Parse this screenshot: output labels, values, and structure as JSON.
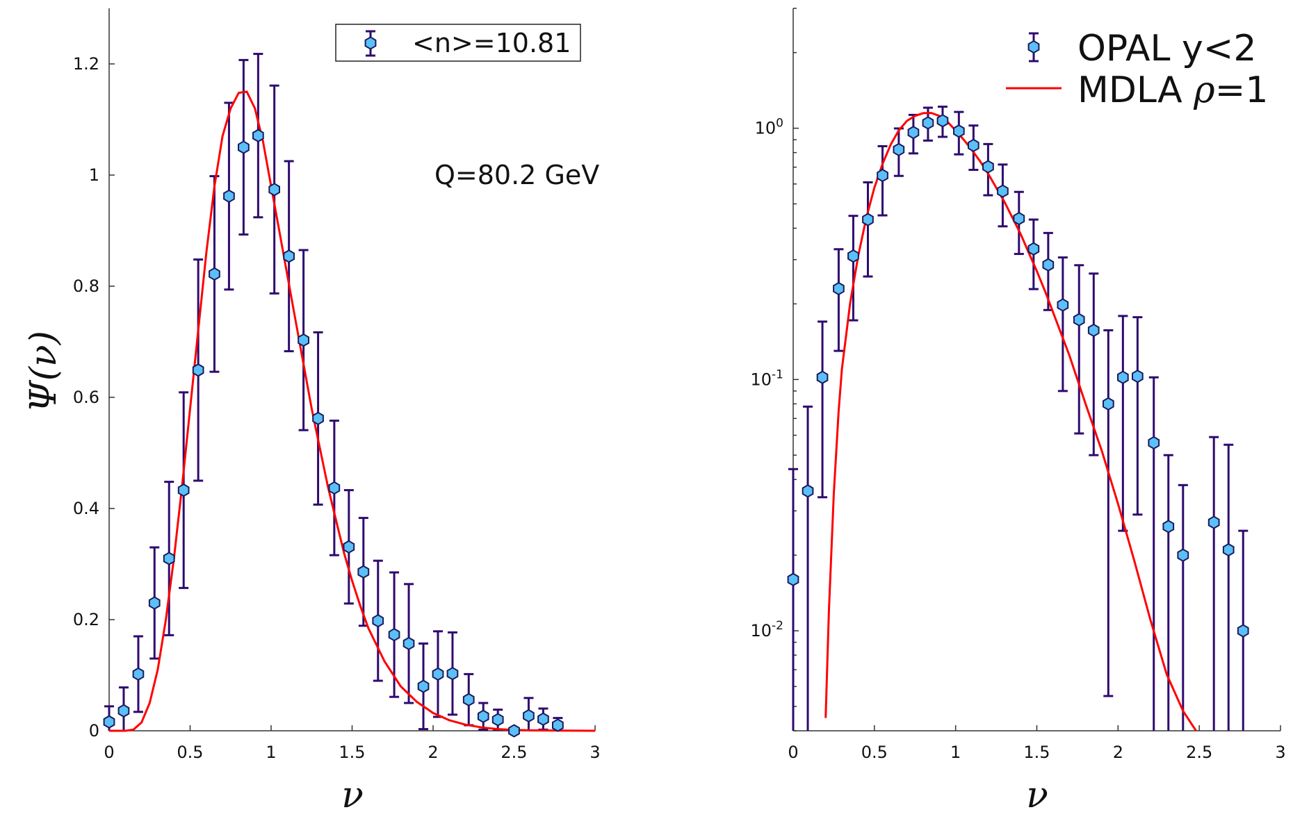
{
  "chart_data": [
    {
      "type": "scatter",
      "panel": "left",
      "xlabel": "ν",
      "ylabel": "Ψ(ν)",
      "xlim": [
        0,
        3
      ],
      "ylim": [
        0,
        1.3
      ],
      "yscale": "linear",
      "xticks": [
        0,
        0.5,
        1,
        1.5,
        2,
        2.5,
        3
      ],
      "xtick_labels": [
        "0",
        "0.5",
        "1",
        "1.5",
        "2",
        "2.5",
        "3"
      ],
      "yticks": [
        0,
        0.2,
        0.4,
        0.6,
        0.8,
        1,
        1.2
      ],
      "ytick_labels": [
        "0",
        "0.2",
        "0.4",
        "0.6",
        "0.8",
        "1",
        "1.2"
      ],
      "legend": {
        "placement": "top-right",
        "boxed": true,
        "entries": [
          "<n>=10.81"
        ]
      },
      "annotation": "Q=80.2 GeV",
      "series": [
        {
          "name": "<n>=10.81",
          "kind": "points-with-errorbars",
          "x": [
            0.0,
            0.09,
            0.18,
            0.28,
            0.37,
            0.46,
            0.55,
            0.65,
            0.74,
            0.83,
            0.92,
            1.02,
            1.11,
            1.2,
            1.29,
            1.39,
            1.48,
            1.57,
            1.66,
            1.76,
            1.85,
            1.94,
            2.03,
            2.12,
            2.22,
            2.31,
            2.4,
            2.5,
            2.59,
            2.68,
            2.77
          ],
          "y": [
            0.016,
            0.036,
            0.102,
            0.23,
            0.31,
            0.433,
            0.649,
            0.822,
            0.962,
            1.05,
            1.071,
            0.974,
            0.854,
            0.703,
            0.562,
            0.437,
            0.331,
            0.286,
            0.198,
            0.173,
            0.157,
            0.08,
            0.102,
            0.103,
            0.056,
            0.026,
            0.02,
            -0.002,
            0.027,
            0.021,
            0.01
          ],
          "yerr": [
            0.028,
            0.042,
            0.068,
            0.1,
            0.138,
            0.176,
            0.199,
            0.176,
            0.168,
            0.157,
            0.147,
            0.187,
            0.171,
            0.162,
            0.155,
            0.121,
            0.102,
            0.097,
            0.108,
            0.112,
            0.107,
            0.077,
            0.077,
            0.074,
            0.046,
            0.024,
            0.018,
            0.0,
            0.032,
            0.019,
            0.013
          ]
        },
        {
          "name": "MDLA ρ=1",
          "kind": "curve",
          "color": "#ff0000",
          "x": [
            0.0,
            0.1,
            0.15,
            0.2,
            0.25,
            0.3,
            0.35,
            0.4,
            0.45,
            0.5,
            0.55,
            0.6,
            0.65,
            0.7,
            0.75,
            0.8,
            0.85,
            0.9,
            0.95,
            1.0,
            1.05,
            1.1,
            1.15,
            1.2,
            1.25,
            1.3,
            1.35,
            1.4,
            1.45,
            1.5,
            1.55,
            1.6,
            1.7,
            1.8,
            1.9,
            2.0,
            2.1,
            2.2,
            2.3,
            2.4,
            2.5,
            2.6,
            2.8,
            3.0
          ],
          "y": [
            0.0,
            0.0,
            0.002,
            0.015,
            0.05,
            0.11,
            0.2,
            0.31,
            0.44,
            0.58,
            0.72,
            0.86,
            0.98,
            1.07,
            1.12,
            1.148,
            1.15,
            1.12,
            1.06,
            0.98,
            0.9,
            0.82,
            0.74,
            0.66,
            0.58,
            0.51,
            0.44,
            0.38,
            0.32,
            0.27,
            0.225,
            0.185,
            0.125,
            0.08,
            0.052,
            0.032,
            0.019,
            0.011,
            0.006,
            0.003,
            0.0016,
            0.0008,
            0.0002,
            0.0
          ]
        }
      ]
    },
    {
      "type": "scatter",
      "panel": "right",
      "xlabel": "ν",
      "ylabel": "",
      "xlim": [
        0,
        3
      ],
      "ylim": [
        0.004,
        3.0
      ],
      "yscale": "log",
      "xticks": [
        0,
        0.5,
        1,
        1.5,
        2,
        2.5,
        3
      ],
      "xtick_labels": [
        "0",
        "0.5",
        "1",
        "1.5",
        "2",
        "2.5",
        "3"
      ],
      "yticks": [
        0.01,
        0.1,
        1
      ],
      "ytick_labels": [
        {
          "base": "10",
          "exp": "-2"
        },
        {
          "base": "10",
          "exp": "-1"
        },
        {
          "base": "10",
          "exp": "0"
        }
      ],
      "legend": {
        "placement": "top-right",
        "boxed": false,
        "entries": [
          {
            "label": "OPAL y<2",
            "kind": "marker"
          },
          {
            "label_prefix": "MDLA ",
            "label_symbol": "ρ",
            "label_suffix": "=1",
            "kind": "line"
          }
        ]
      },
      "series": [
        {
          "name": "OPAL y<2",
          "kind": "points-with-errorbars",
          "x": [
            0.0,
            0.09,
            0.18,
            0.28,
            0.37,
            0.46,
            0.55,
            0.65,
            0.74,
            0.83,
            0.92,
            1.02,
            1.11,
            1.2,
            1.29,
            1.39,
            1.48,
            1.57,
            1.66,
            1.76,
            1.85,
            1.94,
            2.03,
            2.12,
            2.22,
            2.31,
            2.4,
            2.59,
            2.68,
            2.77
          ],
          "y": [
            0.016,
            0.036,
            0.102,
            0.23,
            0.31,
            0.433,
            0.649,
            0.822,
            0.962,
            1.05,
            1.071,
            0.974,
            0.854,
            0.703,
            0.562,
            0.437,
            0.331,
            0.286,
            0.198,
            0.173,
            0.157,
            0.08,
            0.102,
            0.103,
            0.056,
            0.026,
            0.02,
            0.027,
            0.021,
            0.01
          ],
          "lo": [
            0.001,
            0.001,
            0.034,
            0.13,
            0.172,
            0.257,
            0.45,
            0.646,
            0.794,
            0.893,
            0.924,
            0.787,
            0.683,
            0.541,
            0.407,
            0.316,
            0.229,
            0.189,
            0.09,
            0.061,
            0.05,
            0.0055,
            0.025,
            0.029,
            0.001,
            0.001,
            0.001,
            0.001,
            0.001,
            0.001
          ],
          "hi": [
            0.044,
            0.078,
            0.17,
            0.33,
            0.448,
            0.609,
            0.848,
            0.998,
            1.13,
            1.207,
            1.218,
            1.161,
            1.025,
            0.865,
            0.717,
            0.558,
            0.433,
            0.383,
            0.306,
            0.285,
            0.264,
            0.157,
            0.179,
            0.177,
            0.102,
            0.05,
            0.038,
            0.059,
            0.055,
            0.025
          ]
        },
        {
          "name": "MDLA ρ=1",
          "kind": "curve",
          "color": "#ff0000",
          "x": [
            0.2,
            0.22,
            0.25,
            0.28,
            0.3,
            0.35,
            0.4,
            0.45,
            0.5,
            0.55,
            0.6,
            0.65,
            0.7,
            0.75,
            0.8,
            0.85,
            0.9,
            0.95,
            1.0,
            1.05,
            1.1,
            1.15,
            1.2,
            1.25,
            1.3,
            1.35,
            1.4,
            1.45,
            1.5,
            1.55,
            1.6,
            1.7,
            1.8,
            1.9,
            2.0,
            2.1,
            2.2,
            2.3,
            2.4,
            2.48
          ],
          "y": [
            0.0045,
            0.012,
            0.035,
            0.075,
            0.11,
            0.2,
            0.31,
            0.44,
            0.58,
            0.72,
            0.86,
            0.98,
            1.07,
            1.12,
            1.148,
            1.15,
            1.12,
            1.06,
            0.98,
            0.9,
            0.82,
            0.74,
            0.66,
            0.58,
            0.51,
            0.44,
            0.38,
            0.32,
            0.27,
            0.225,
            0.185,
            0.125,
            0.08,
            0.052,
            0.032,
            0.019,
            0.011,
            0.0067,
            0.0048,
            0.004
          ]
        }
      ]
    }
  ]
}
